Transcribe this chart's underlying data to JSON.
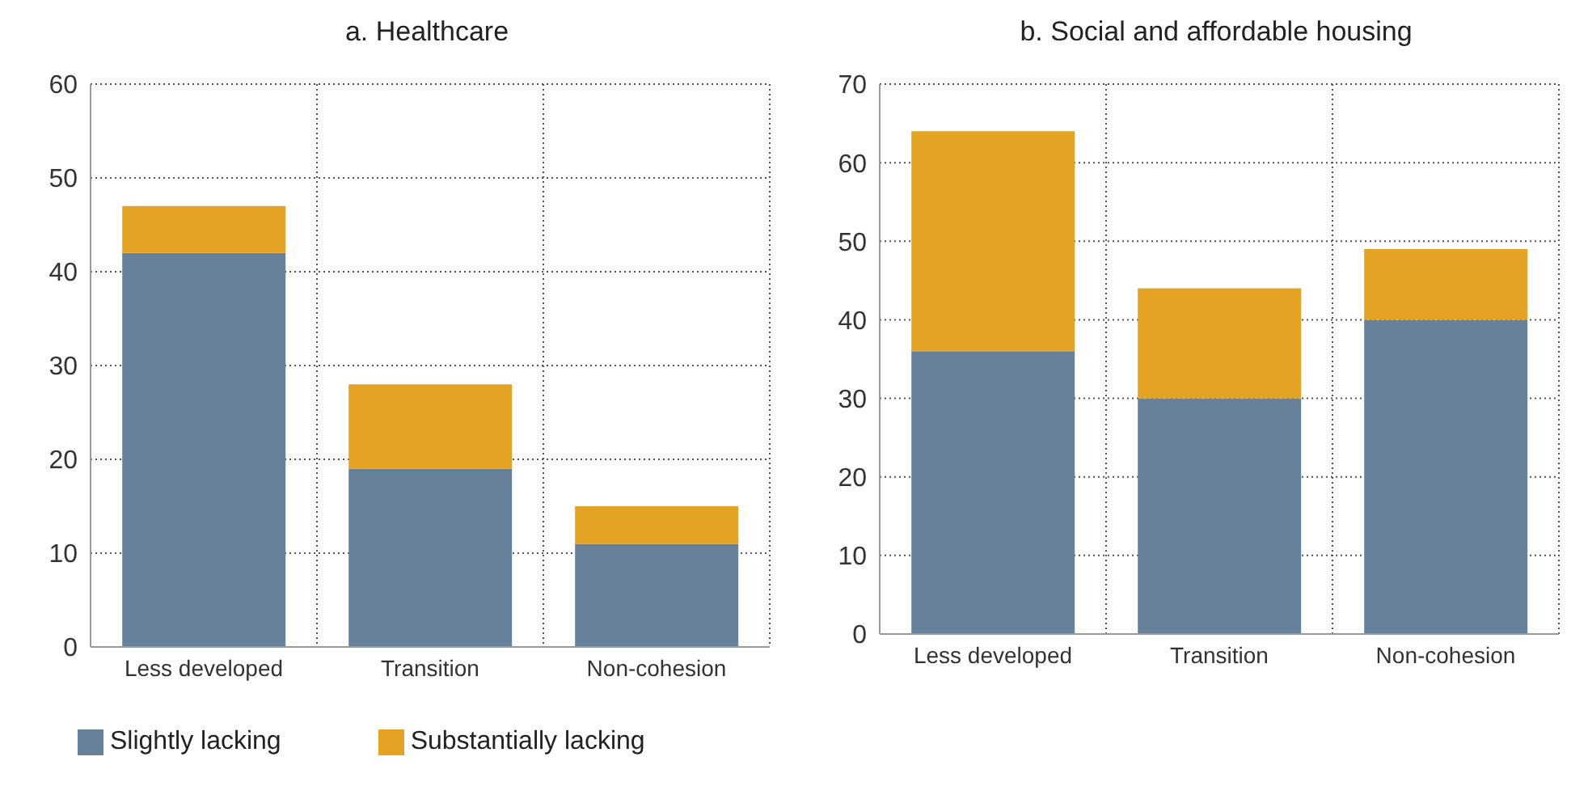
{
  "chart_data": [
    {
      "type": "bar",
      "title": "a.  Healthcare",
      "categories": [
        "Less developed",
        "Transition",
        "Non-cohesion"
      ],
      "stacked": true,
      "series": [
        {
          "name": "Slightly lacking",
          "color": "#67819b",
          "values": [
            42,
            19,
            11
          ]
        },
        {
          "name": "Substantially lacking",
          "color": "#e5a324",
          "values": [
            5,
            9,
            4
          ]
        }
      ],
      "ylim": [
        0,
        60
      ],
      "yticks": [
        0,
        10,
        20,
        30,
        40,
        50,
        60
      ],
      "grid": true,
      "legend": "bottom"
    },
    {
      "type": "bar",
      "title": "b.  Social and affordable housing",
      "categories": [
        "Less developed",
        "Transition",
        "Non-cohesion"
      ],
      "stacked": true,
      "series": [
        {
          "color": "#67819b",
          "values": [
            36,
            30,
            40
          ]
        },
        {
          "color": "#e5a324",
          "values": [
            28,
            14,
            9
          ]
        }
      ],
      "ylim": [
        0,
        70
      ],
      "yticks": [
        0,
        10,
        20,
        30,
        40,
        50,
        60,
        70
      ],
      "grid": true
    }
  ]
}
